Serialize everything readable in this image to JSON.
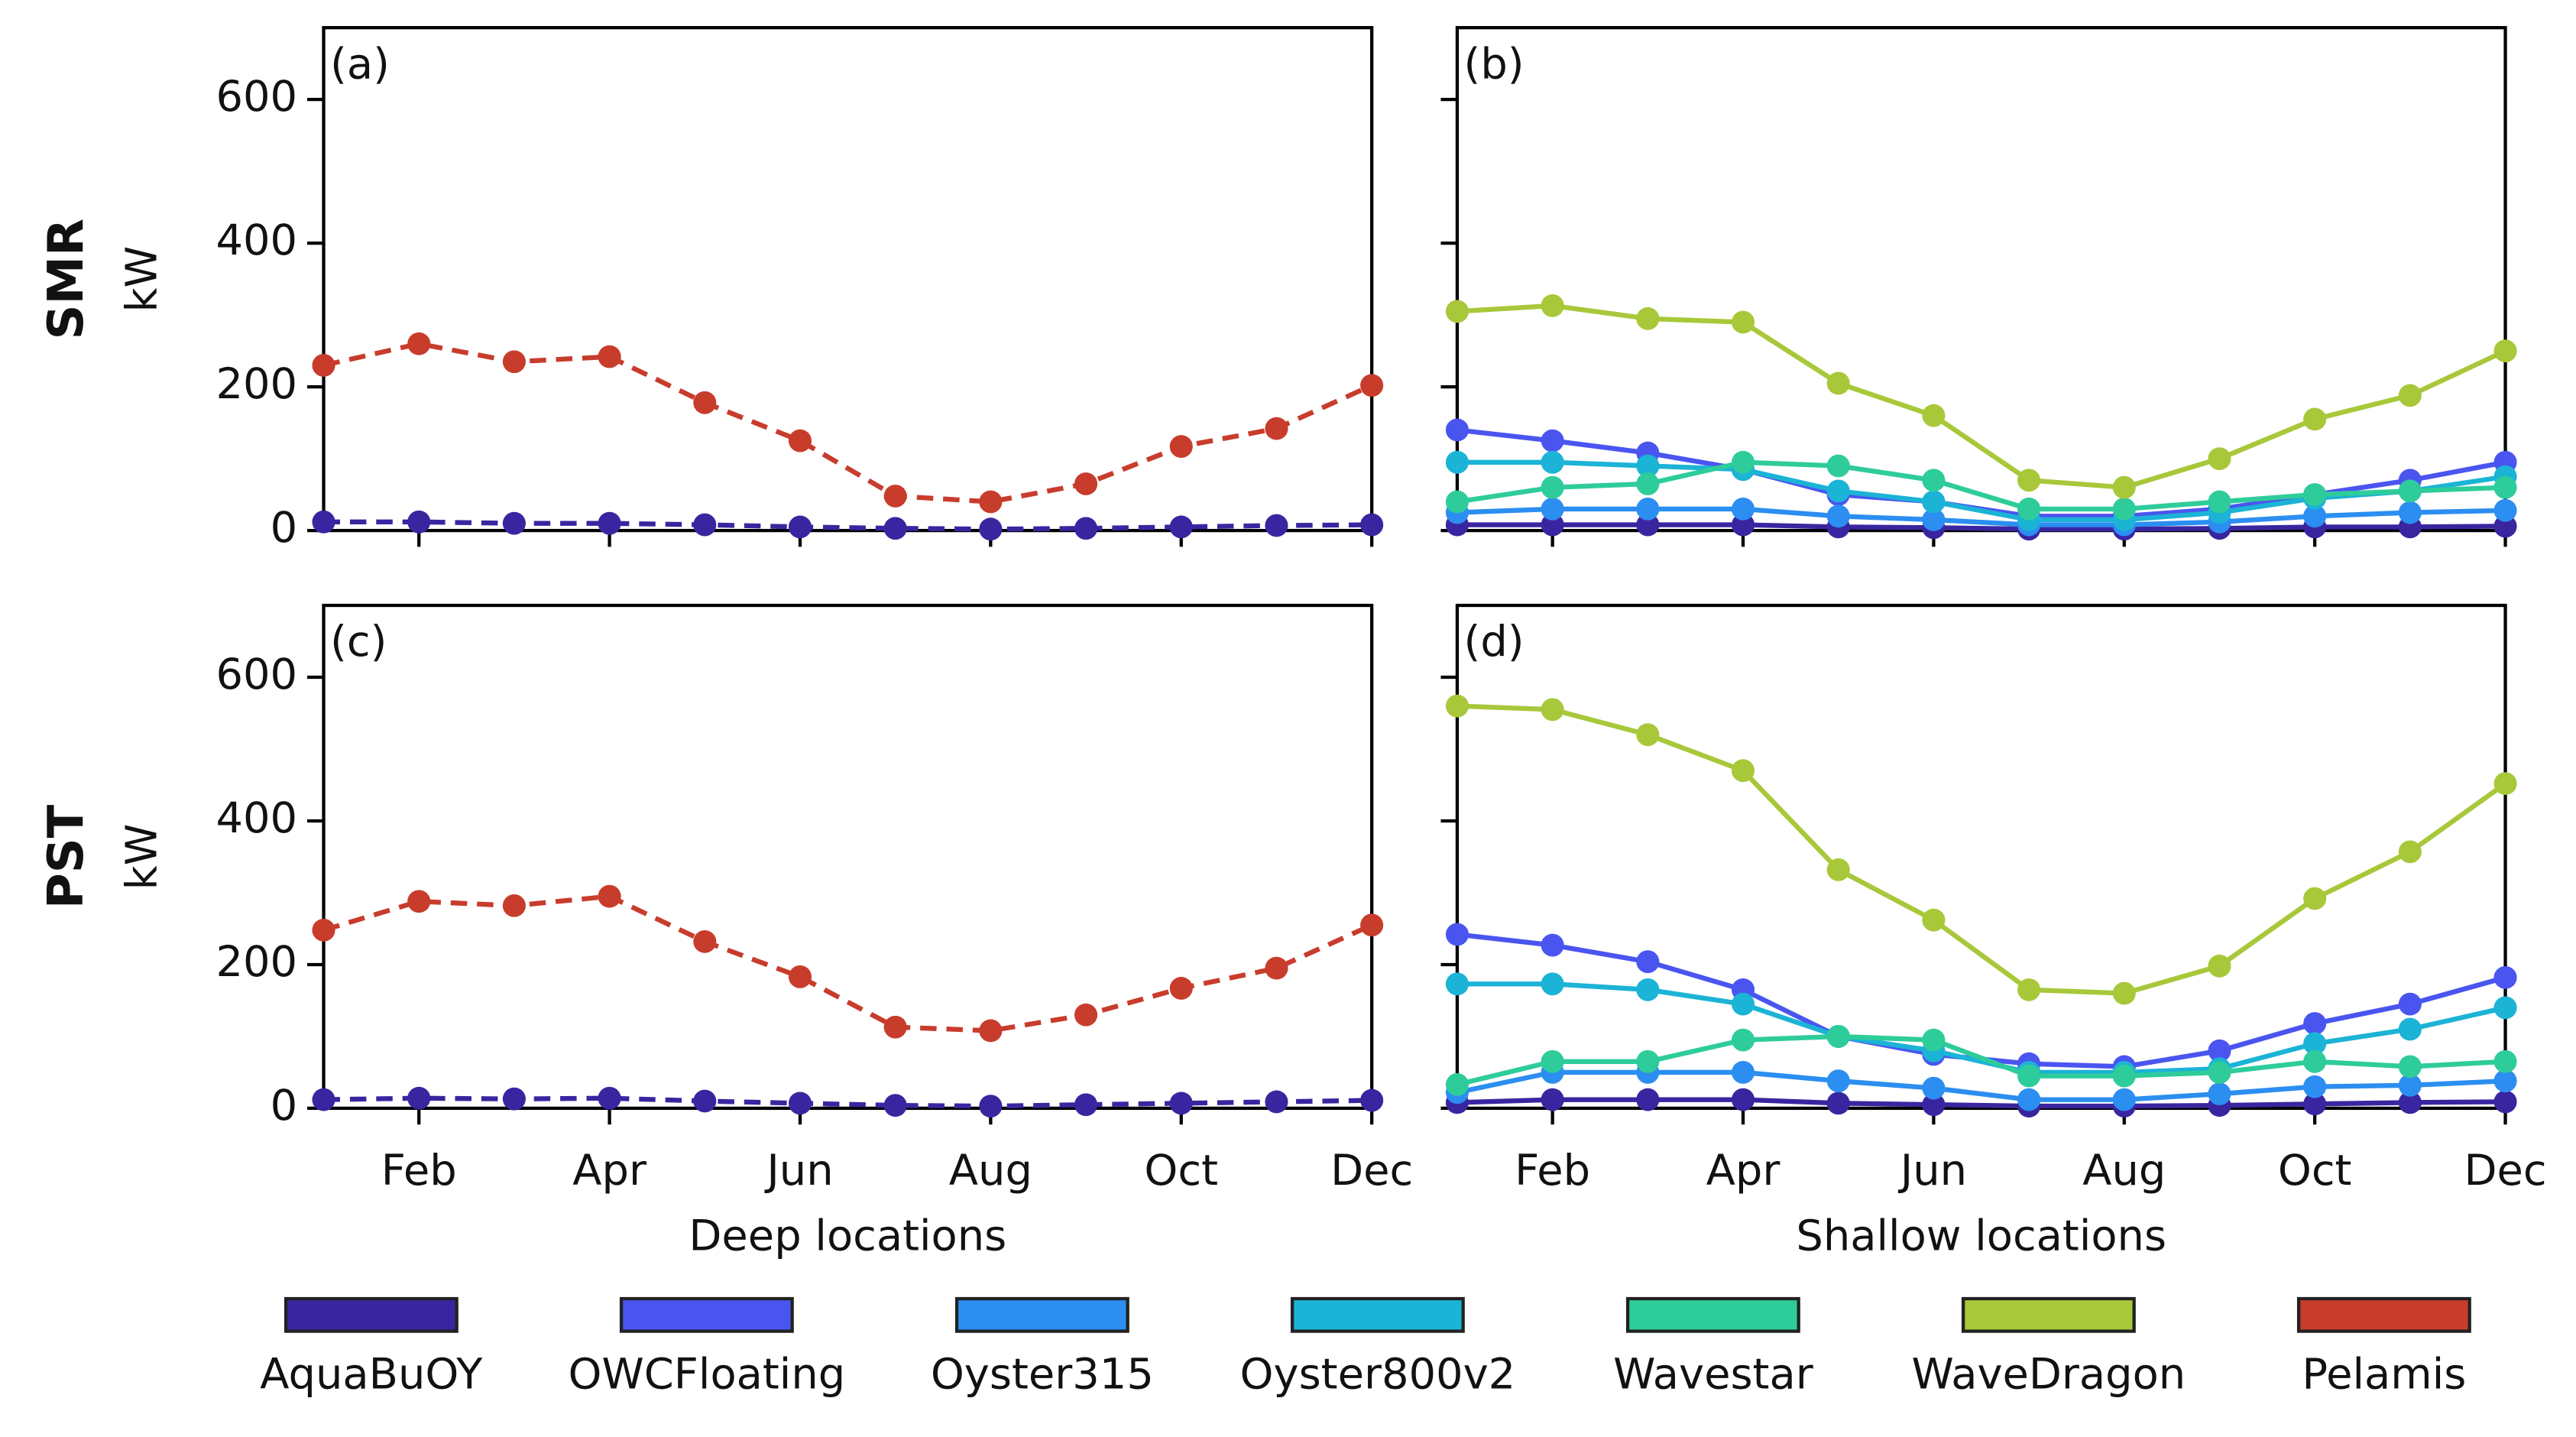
{
  "chart_data": [
    {
      "type": "line",
      "panel_label": "(a)",
      "row_label": "SMR",
      "ylabel": "kW",
      "categories": [
        null,
        null,
        null,
        null,
        null,
        null,
        null,
        null,
        null,
        null,
        null,
        null
      ],
      "ylim": [
        0,
        700
      ],
      "yticks": [
        0,
        200,
        400,
        600
      ],
      "series": [
        {
          "name": "AquaBuOY",
          "color": "#3a25a0",
          "linestyle": "dashed",
          "values": [
            12,
            12,
            10,
            10,
            8,
            5,
            3,
            2,
            3,
            5,
            7,
            8
          ]
        },
        {
          "name": "Pelamis",
          "color": "#c83c2c",
          "linestyle": "dashed",
          "values": [
            230,
            260,
            235,
            242,
            178,
            125,
            48,
            40,
            65,
            117,
            142,
            202
          ]
        }
      ]
    },
    {
      "type": "line",
      "panel_label": "(b)",
      "categories": [
        null,
        null,
        null,
        null,
        null,
        null,
        null,
        null,
        null,
        null,
        null,
        null
      ],
      "ylim": [
        0,
        700
      ],
      "yticks": [
        0,
        200,
        400,
        600
      ],
      "series": [
        {
          "name": "AquaBuOY",
          "color": "#3a25a0",
          "linestyle": "solid",
          "values": [
            8,
            8,
            8,
            8,
            5,
            4,
            2,
            2,
            3,
            5,
            5,
            6
          ]
        },
        {
          "name": "OWCFloating",
          "color": "#4a55f0",
          "linestyle": "solid",
          "values": [
            140,
            125,
            108,
            85,
            50,
            40,
            20,
            20,
            30,
            50,
            70,
            95
          ]
        },
        {
          "name": "Oyster315",
          "color": "#2b8ef0",
          "linestyle": "solid",
          "values": [
            25,
            30,
            30,
            30,
            20,
            15,
            8,
            8,
            12,
            20,
            25,
            28
          ]
        },
        {
          "name": "Oyster800v2",
          "color": "#1bb3d6",
          "linestyle": "solid",
          "values": [
            95,
            95,
            90,
            85,
            55,
            40,
            15,
            15,
            25,
            45,
            55,
            75
          ]
        },
        {
          "name": "Wavestar",
          "color": "#2ecc9a",
          "linestyle": "solid",
          "values": [
            40,
            60,
            65,
            95,
            90,
            70,
            30,
            30,
            40,
            50,
            55,
            60
          ]
        },
        {
          "name": "WaveDragon",
          "color": "#a8c83a",
          "linestyle": "solid",
          "values": [
            305,
            313,
            295,
            290,
            205,
            160,
            70,
            60,
            100,
            155,
            188,
            250
          ]
        }
      ]
    },
    {
      "type": "line",
      "panel_label": "(c)",
      "row_label": "PST",
      "ylabel": "kW",
      "xlabel": "Deep locations",
      "categories": [
        null,
        "Feb",
        null,
        "Apr",
        null,
        "Jun",
        null,
        "Aug",
        null,
        "Oct",
        null,
        "Dec"
      ],
      "ylim": [
        0,
        700
      ],
      "yticks": [
        0,
        200,
        400,
        600
      ],
      "series": [
        {
          "name": "AquaBuOY",
          "color": "#3a25a0",
          "linestyle": "dashed",
          "values": [
            12,
            14,
            13,
            14,
            10,
            7,
            4,
            3,
            5,
            7,
            9,
            11
          ]
        },
        {
          "name": "Pelamis",
          "color": "#c83c2c",
          "linestyle": "dashed",
          "values": [
            248,
            288,
            282,
            295,
            232,
            183,
            113,
            108,
            130,
            167,
            195,
            255
          ]
        }
      ]
    },
    {
      "type": "line",
      "panel_label": "(d)",
      "xlabel": "Shallow locations",
      "categories": [
        null,
        "Feb",
        null,
        "Apr",
        null,
        "Jun",
        null,
        "Aug",
        null,
        "Oct",
        null,
        "Dec"
      ],
      "ylim": [
        0,
        700
      ],
      "yticks": [
        0,
        200,
        400,
        600
      ],
      "series": [
        {
          "name": "AquaBuOY",
          "color": "#3a25a0",
          "linestyle": "solid",
          "values": [
            8,
            12,
            12,
            12,
            7,
            5,
            3,
            3,
            4,
            6,
            8,
            9
          ]
        },
        {
          "name": "OWCFloating",
          "color": "#4a55f0",
          "linestyle": "solid",
          "values": [
            242,
            227,
            204,
            165,
            100,
            75,
            62,
            58,
            80,
            118,
            145,
            182
          ]
        },
        {
          "name": "Oyster315",
          "color": "#2b8ef0",
          "linestyle": "solid",
          "values": [
            22,
            50,
            50,
            50,
            38,
            28,
            12,
            12,
            20,
            30,
            32,
            38
          ]
        },
        {
          "name": "Oyster800v2",
          "color": "#1bb3d6",
          "linestyle": "solid",
          "values": [
            173,
            173,
            165,
            145,
            100,
            80,
            50,
            50,
            55,
            90,
            110,
            140
          ]
        },
        {
          "name": "Wavestar",
          "color": "#2ecc9a",
          "linestyle": "solid",
          "values": [
            33,
            65,
            65,
            95,
            100,
            95,
            45,
            45,
            50,
            65,
            58,
            65
          ]
        },
        {
          "name": "WaveDragon",
          "color": "#a8c83a",
          "linestyle": "solid",
          "values": [
            560,
            555,
            520,
            470,
            332,
            262,
            165,
            160,
            198,
            292,
            357,
            452
          ]
        }
      ]
    }
  ]
}
